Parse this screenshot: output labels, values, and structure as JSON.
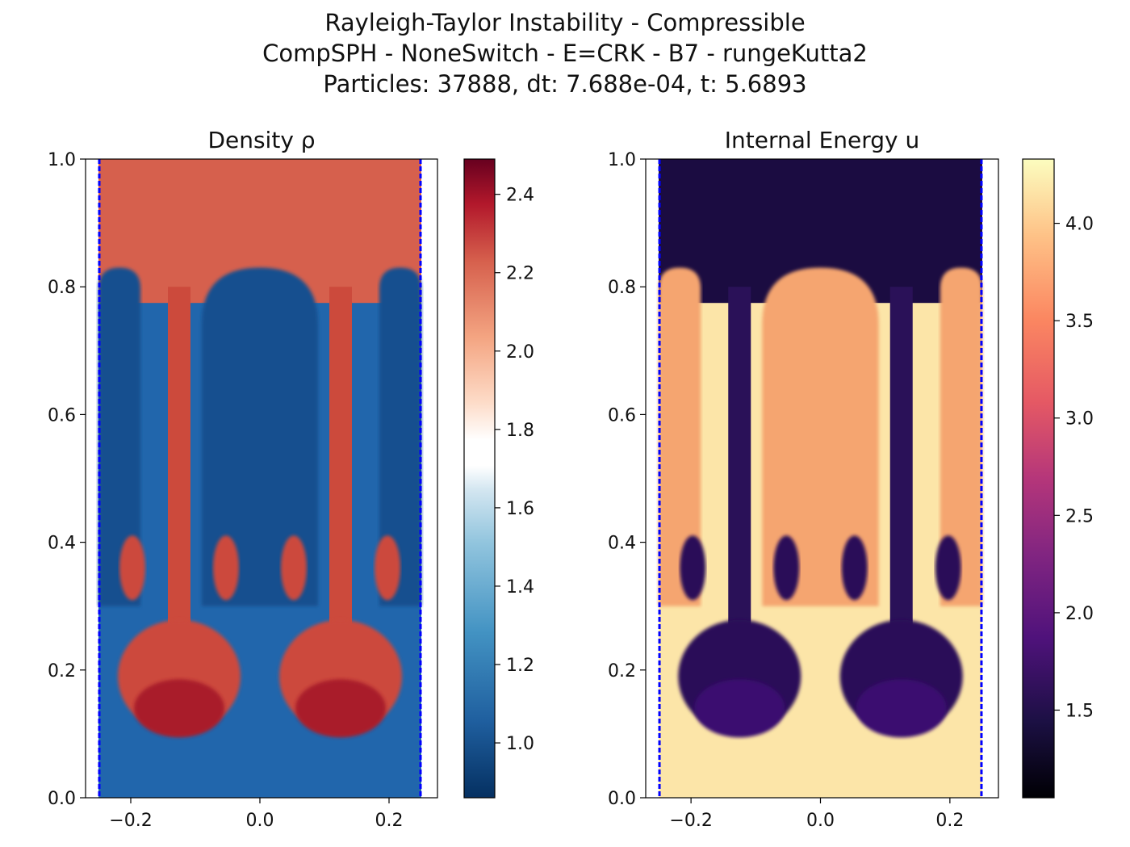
{
  "figure": {
    "title_lines": [
      "Rayleigh-Taylor Instability - Compressible",
      "CompSPH - NoneSwitch - E=CRK - B7 - rungeKutta2",
      "Particles: 37888, dt: 7.688e-04, t: 5.6893"
    ]
  },
  "chart_data": [
    {
      "type": "heatmap",
      "title": "Density ρ",
      "field": "density",
      "colormap": "RdBu_r",
      "xlim": [
        -0.27,
        0.275
      ],
      "ylim": [
        0.0,
        1.0
      ],
      "xticks": [
        -0.2,
        0.0,
        0.2
      ],
      "xtick_labels": [
        "−0.2",
        "0.0",
        "0.2"
      ],
      "yticks": [
        0.0,
        0.2,
        0.4,
        0.6,
        0.8,
        1.0
      ],
      "ytick_labels": [
        "0.0",
        "0.2",
        "0.4",
        "0.6",
        "0.8",
        "1.0"
      ],
      "domain_x": [
        -0.25,
        0.25
      ],
      "boundary_color": "#0000ff",
      "colorbar": {
        "range": [
          0.86,
          2.49
        ],
        "ticks": [
          1.0,
          1.2,
          1.4,
          1.6,
          1.8,
          2.0,
          2.2,
          2.4
        ],
        "tick_labels": [
          "1.0",
          "1.2",
          "1.4",
          "1.6",
          "1.8",
          "2.0",
          "2.2",
          "2.4"
        ]
      },
      "regions": {
        "heavy_top": "#d6604d",
        "light_bottom": "#2166ac",
        "light_bubble": "#17508f",
        "spike": "#cc4a3c",
        "spike_head": "#a91a2b"
      }
    },
    {
      "type": "heatmap",
      "title": "Internal Energy u",
      "field": "internal_energy",
      "colormap": "magma",
      "xlim": [
        -0.27,
        0.275
      ],
      "ylim": [
        0.0,
        1.0
      ],
      "xticks": [
        -0.2,
        0.0,
        0.2
      ],
      "xtick_labels": [
        "−0.2",
        "0.0",
        "0.2"
      ],
      "yticks": [
        0.0,
        0.2,
        0.4,
        0.6,
        0.8,
        1.0
      ],
      "ytick_labels": [
        "0.0",
        "0.2",
        "0.4",
        "0.6",
        "0.8",
        "1.0"
      ],
      "domain_x": [
        -0.25,
        0.25
      ],
      "boundary_color": "#0000ff",
      "colorbar": {
        "range": [
          1.05,
          4.33
        ],
        "ticks": [
          1.5,
          2.0,
          2.5,
          3.0,
          3.5,
          4.0
        ],
        "tick_labels": [
          "1.5",
          "2.0",
          "2.5",
          "3.0",
          "3.5",
          "4.0"
        ]
      },
      "regions": {
        "heavy_top": "#1b0c41",
        "light_bottom": "#fce5a8",
        "light_bubble": "#f5a56f",
        "spike": "#2a1158",
        "spike_head": "#3b0f70"
      }
    }
  ]
}
